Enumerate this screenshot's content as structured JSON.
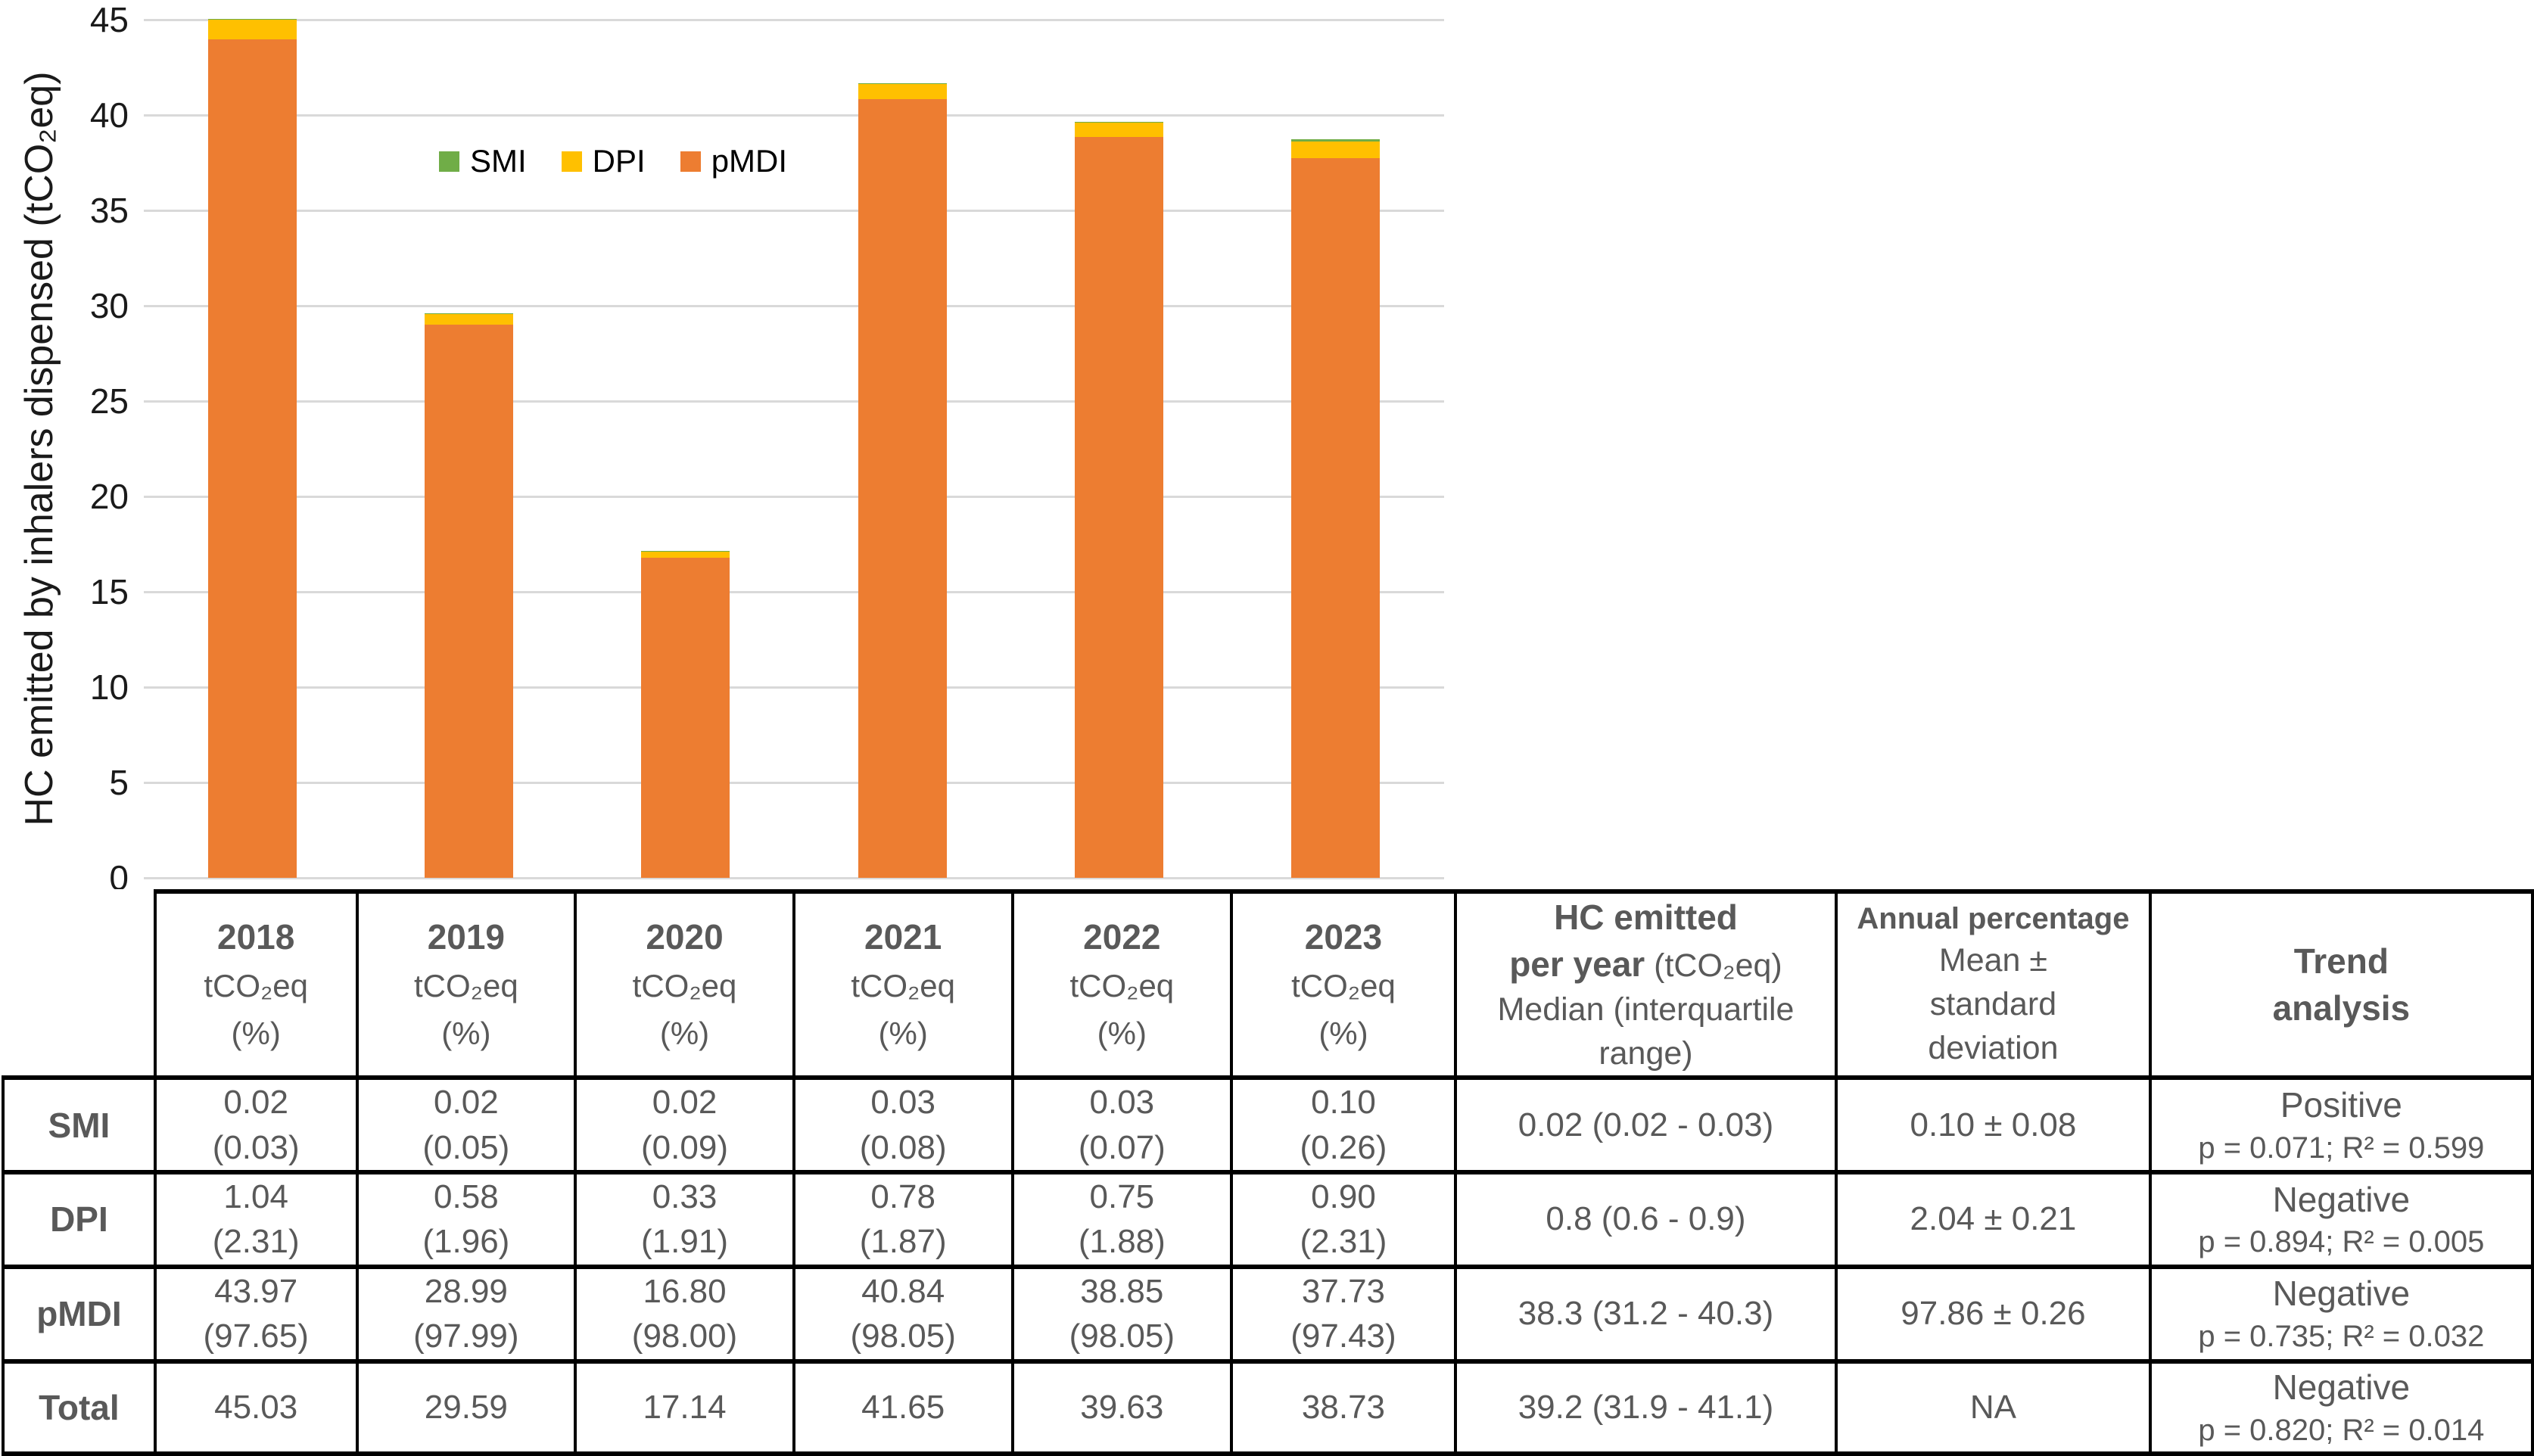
{
  "chart_data": {
    "type": "bar",
    "stacked": true,
    "categories": [
      "2018",
      "2019",
      "2020",
      "2021",
      "2022",
      "2023"
    ],
    "series": [
      {
        "name": "pMDI",
        "color": "#ED7D31",
        "values": [
          43.97,
          28.99,
          16.8,
          40.84,
          38.85,
          37.73
        ]
      },
      {
        "name": "DPI",
        "color": "#FFC000",
        "values": [
          1.04,
          0.58,
          0.33,
          0.78,
          0.75,
          0.9
        ]
      },
      {
        "name": "SMI",
        "color": "#70AD47",
        "values": [
          0.02,
          0.02,
          0.02,
          0.03,
          0.03,
          0.1
        ]
      }
    ],
    "totals": [
      45.03,
      29.59,
      17.14,
      41.65,
      39.63,
      38.73
    ],
    "title": "",
    "xlabel": "",
    "ylabel": "HC emitted by inhalers dispensed (tCO₂eq)",
    "ylim": [
      0,
      45
    ],
    "ytick_step": 5,
    "grid": true,
    "gridline_color": "#d9d9d9",
    "legend_position": "top-left-of-plot",
    "legend": [
      {
        "label": "SMI",
        "color": "#70AD47"
      },
      {
        "label": "DPI",
        "color": "#FFC000"
      },
      {
        "label": "pMDI",
        "color": "#ED7D31"
      }
    ]
  },
  "table": {
    "year_headers": [
      {
        "year": "2018",
        "unit": "tCO₂eq",
        "pct": "(%)"
      },
      {
        "year": "2019",
        "unit": "tCO₂eq",
        "pct": "(%)"
      },
      {
        "year": "2020",
        "unit": "tCO₂eq",
        "pct": "(%)"
      },
      {
        "year": "2021",
        "unit": "tCO₂eq",
        "pct": "(%)"
      },
      {
        "year": "2022",
        "unit": "tCO₂eq",
        "pct": "(%)"
      },
      {
        "year": "2023",
        "unit": "tCO₂eq",
        "pct": "(%)"
      }
    ],
    "stat_headers": {
      "hc_bold1": "HC emitted",
      "hc_bold2": "per year",
      "hc_norm2": " (tCO₂eq)",
      "hc_line3": "Median (interquartile",
      "hc_line4": "range)",
      "annual_line1": "Annual percentage",
      "annual_line2": "Mean ±",
      "annual_line3": "standard",
      "annual_line4": "deviation",
      "trend_line1": "Trend",
      "trend_line2": "analysis"
    },
    "rows": [
      {
        "label": "SMI",
        "cells": [
          {
            "v": "0.02",
            "p": "(0.03)"
          },
          {
            "v": "0.02",
            "p": "(0.05)"
          },
          {
            "v": "0.02",
            "p": "(0.09)"
          },
          {
            "v": "0.03",
            "p": "(0.08)"
          },
          {
            "v": "0.03",
            "p": "(0.07)"
          },
          {
            "v": "0.10",
            "p": "(0.26)"
          }
        ],
        "median": "0.02 (0.02 - 0.03)",
        "annual": "0.10 ± 0.08",
        "trend_dir": "Positive",
        "trend_stats": "p = 0.071; R² = 0.599"
      },
      {
        "label": "DPI",
        "cells": [
          {
            "v": "1.04",
            "p": "(2.31)"
          },
          {
            "v": "0.58",
            "p": "(1.96)"
          },
          {
            "v": "0.33",
            "p": "(1.91)"
          },
          {
            "v": "0.78",
            "p": "(1.87)"
          },
          {
            "v": "0.75",
            "p": "(1.88)"
          },
          {
            "v": "0.90",
            "p": "(2.31)"
          }
        ],
        "median": "0.8 (0.6 - 0.9)",
        "annual": "2.04 ± 0.21",
        "trend_dir": "Negative",
        "trend_stats": "p = 0.894; R² = 0.005"
      },
      {
        "label": "pMDI",
        "cells": [
          {
            "v": "43.97",
            "p": "(97.65)"
          },
          {
            "v": "28.99",
            "p": "(97.99)"
          },
          {
            "v": "16.80",
            "p": "(98.00)"
          },
          {
            "v": "40.84",
            "p": "(98.05)"
          },
          {
            "v": "38.85",
            "p": "(98.05)"
          },
          {
            "v": "37.73",
            "p": "(97.43)"
          }
        ],
        "median": "38.3 (31.2 - 40.3)",
        "annual": "97.86 ± 0.26",
        "trend_dir": "Negative",
        "trend_stats": "p = 0.735; R² = 0.032"
      },
      {
        "label": "Total",
        "cells": [
          {
            "v": "45.03"
          },
          {
            "v": "29.59"
          },
          {
            "v": "17.14"
          },
          {
            "v": "41.65"
          },
          {
            "v": "39.63"
          },
          {
            "v": "38.73"
          }
        ],
        "median": "39.2 (31.9 - 41.1)",
        "annual": "NA",
        "trend_dir": "Negative",
        "trend_stats": "p = 0.820; R² = 0.014"
      }
    ]
  }
}
